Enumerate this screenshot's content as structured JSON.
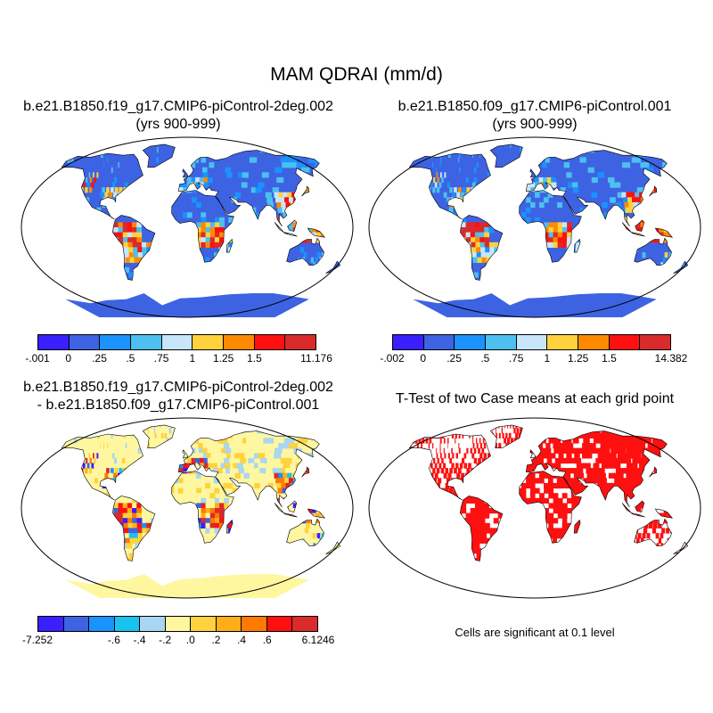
{
  "title": "MAM QDRAI (mm/d)",
  "panels": {
    "top_left": {
      "title_line1": "b.e21.B1850.f19_g17.CMIP6-piControl-2deg.002",
      "title_line2": "(yrs 900-999)"
    },
    "top_right": {
      "title_line1": "b.e21.B1850.f09_g17.CMIP6-piControl.001",
      "title_line2": "(yrs 900-999)"
    },
    "bottom_left": {
      "title_line1": "b.e21.B1850.f19_g17.CMIP6-piControl-2deg.002",
      "title_line2": "- b.e21.B1850.f09_g17.CMIP6-piControl.001"
    },
    "bottom_right": {
      "title": "T-Test of two Case means at each grid point",
      "note": "Cells are significant at 0.1 level"
    }
  },
  "colorbars": {
    "top_left": {
      "colors": [
        "#3a1fff",
        "#3d63e3",
        "#1a92ff",
        "#4cc0ef",
        "#c8e6f9",
        "#ffd23d",
        "#ff8a00",
        "#ff1010",
        "#d92b2b"
      ],
      "labels": [
        "-.001",
        "0",
        ".25",
        ".5",
        ".75",
        "1",
        "1.25",
        "1.5",
        "11.176"
      ]
    },
    "top_right": {
      "colors": [
        "#3a1fff",
        "#3d63e3",
        "#1a92ff",
        "#4cc0ef",
        "#c8e6f9",
        "#ffd23d",
        "#ff8a00",
        "#ff1010",
        "#d92b2b"
      ],
      "labels": [
        "-.002",
        "0",
        ".25",
        ".5",
        ".75",
        "1",
        "1.25",
        "1.5",
        "14.382"
      ]
    },
    "bottom_left": {
      "colors": [
        "#3a1fff",
        "#3d63e3",
        "#1a92ff",
        "#19c3ee",
        "#a9d6f2",
        "#fff7a0",
        "#ffd23d",
        "#ffae19",
        "#ff7a00",
        "#ff1010",
        "#d92b2b"
      ],
      "labels": [
        "-7.252",
        "-.6",
        "-.4",
        "-.2",
        ".0",
        ".2",
        ".4",
        ".6",
        "6.1246"
      ]
    }
  },
  "map_colors": {
    "ocean_mask": "#ffffff",
    "land_base_abs": "#3d63e3",
    "land_base_diff": "#fff7a0",
    "sig": "#ff1010"
  }
}
